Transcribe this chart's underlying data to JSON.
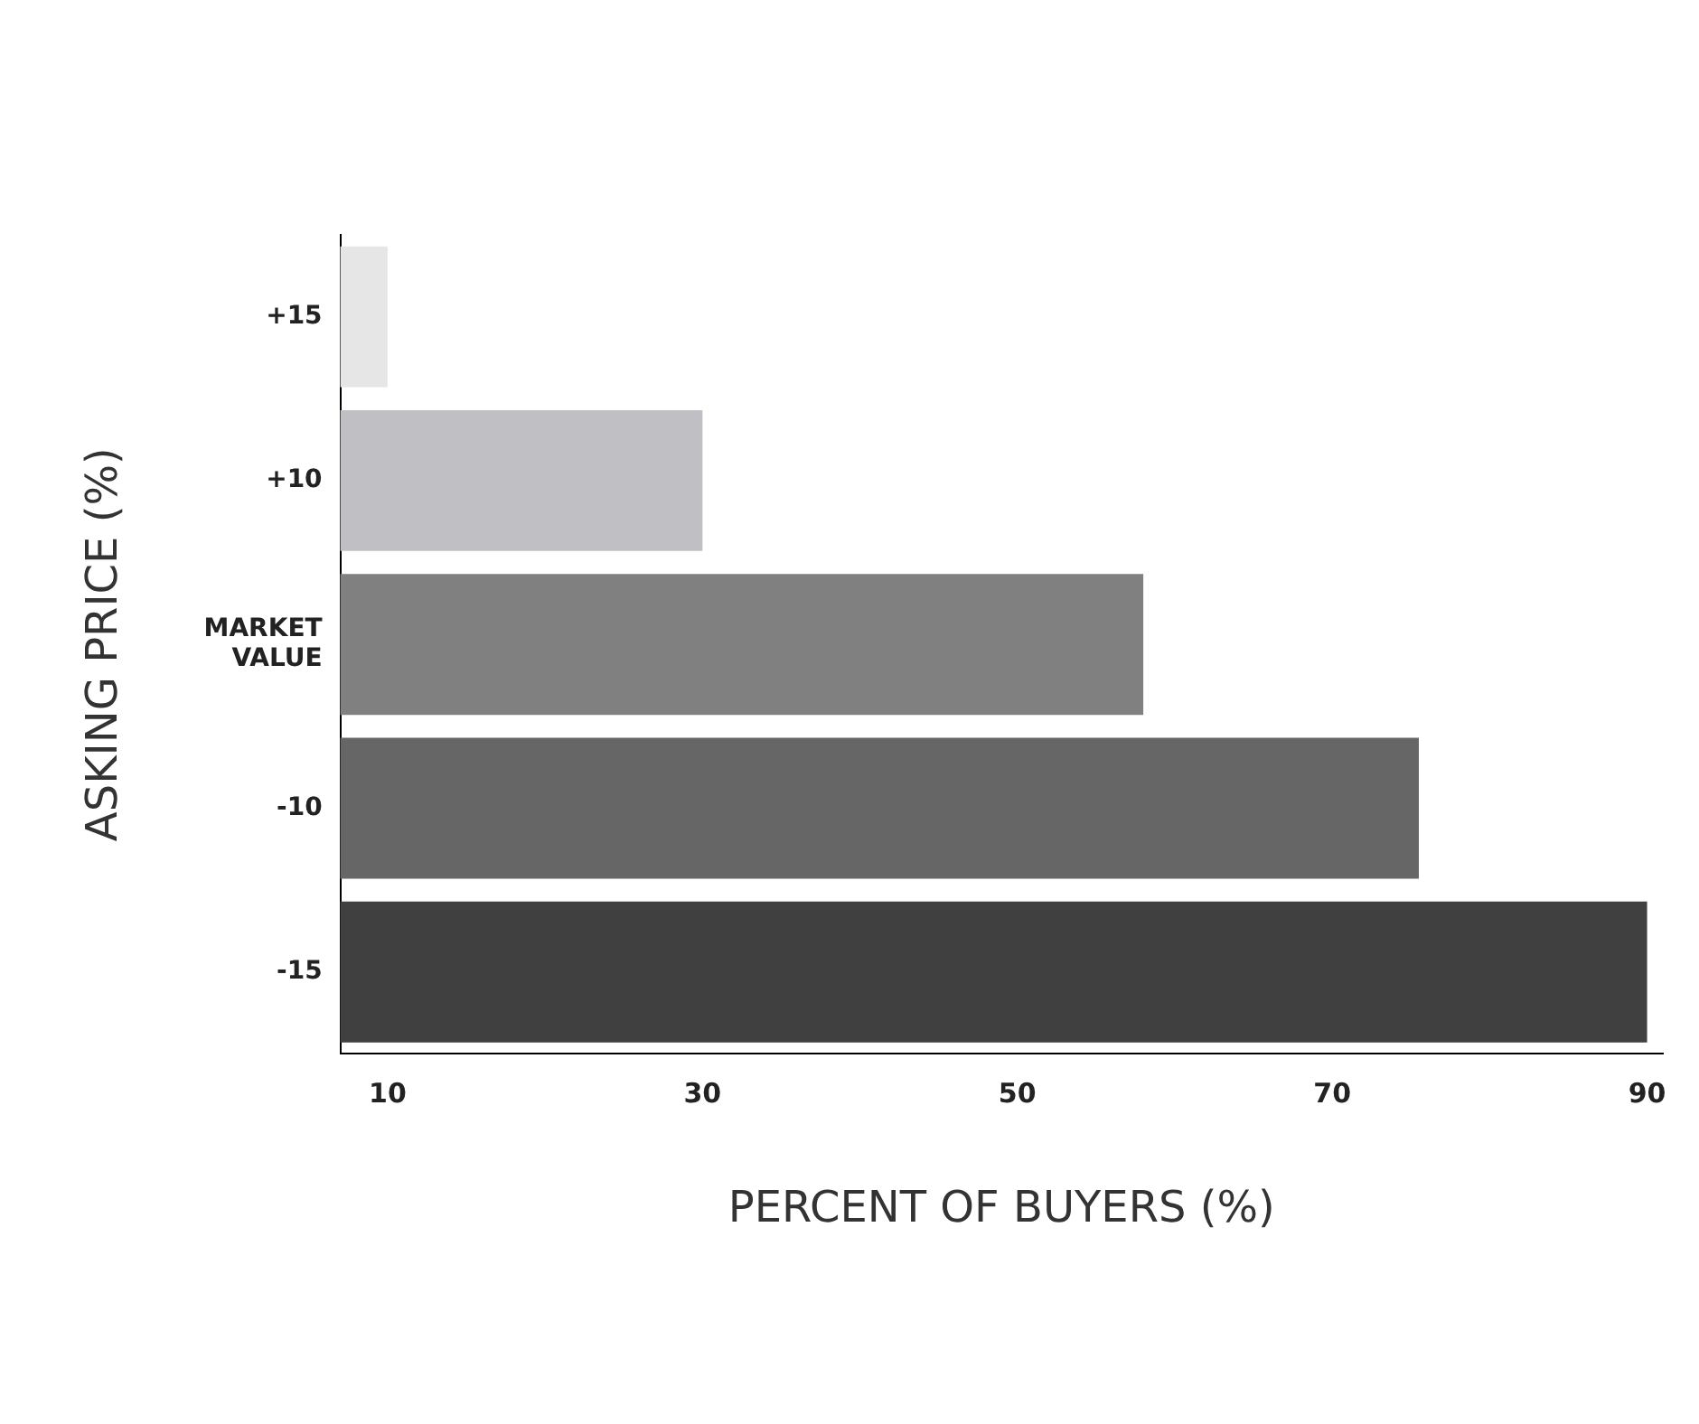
{
  "chart_data": {
    "type": "bar",
    "orientation": "horizontal",
    "xlabel": "PERCENT OF BUYERS (%)",
    "ylabel": "ASKING PRICE (%)",
    "categories": [
      "+15",
      "+10",
      "MARKET VALUE",
      "-10",
      "-15"
    ],
    "values": [
      10,
      30,
      58,
      75.5,
      90
    ],
    "colors": [
      "#e6e6e6",
      "#c0c0c4",
      "#808080",
      "#666666",
      "#404040"
    ],
    "xlim": [
      7,
      91
    ],
    "xticks": [
      10,
      30,
      50,
      70,
      90
    ],
    "grid": false,
    "legend": false
  }
}
